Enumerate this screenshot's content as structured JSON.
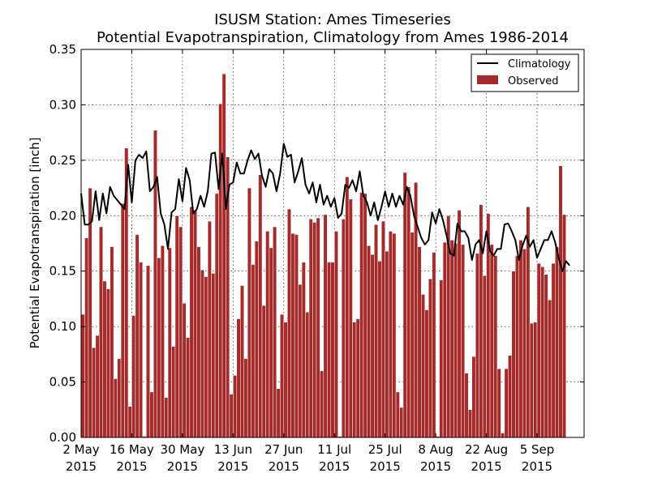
{
  "chart_data": {
    "type": "bar",
    "title": "ISUSM Station: Ames Timeseries",
    "subtitle": "Potential Evapotranspiration, Climatology from Ames 1986-2014",
    "ylabel": "Potential Evapotranspiration [inch]",
    "xlabel": "",
    "ylim": [
      0,
      0.35
    ],
    "xlim": [
      "2015-05-02",
      "2015-09-18"
    ],
    "grid": true,
    "legend": "top-right",
    "colors": {
      "observed": "#a52a2a",
      "climatology": "#000000"
    },
    "y_ticks": [
      "0.00",
      "0.05",
      "0.10",
      "0.15",
      "0.20",
      "0.25",
      "0.30",
      "0.35"
    ],
    "x_ticks": [
      {
        "date": "2015-05-02",
        "line1": "2 May",
        "line2": "2015"
      },
      {
        "date": "2015-05-16",
        "line1": "16 May",
        "line2": "2015"
      },
      {
        "date": "2015-05-30",
        "line1": "30 May",
        "line2": "2015"
      },
      {
        "date": "2015-06-13",
        "line1": "13 Jun",
        "line2": "2015"
      },
      {
        "date": "2015-06-27",
        "line1": "27 Jun",
        "line2": "2015"
      },
      {
        "date": "2015-07-11",
        "line1": "11 Jul",
        "line2": "2015"
      },
      {
        "date": "2015-07-25",
        "line1": "25 Jul",
        "line2": "2015"
      },
      {
        "date": "2015-08-08",
        "line1": "8 Aug",
        "line2": "2015"
      },
      {
        "date": "2015-08-22",
        "line1": "22 Aug",
        "line2": "2015"
      },
      {
        "date": "2015-09-05",
        "line1": "5 Sep",
        "line2": "2015"
      }
    ],
    "series": [
      {
        "name": "Observed",
        "type": "bar",
        "start_date": "2015-05-02",
        "values": [
          0.111,
          0.18,
          0.225,
          0.081,
          0.092,
          0.19,
          0.141,
          0.134,
          0.172,
          0.053,
          0.071,
          0.211,
          0.261,
          0.028,
          0.11,
          0.183,
          0.158,
          0.001,
          0.155,
          0.041,
          0.277,
          0.162,
          0.173,
          0.036,
          0.171,
          0.082,
          0.2,
          0.19,
          0.121,
          0.09,
          0.208,
          0.205,
          0.172,
          0.151,
          0.145,
          0.195,
          0.148,
          0.22,
          0.301,
          0.328,
          0.253,
          0.039,
          0.056,
          0.107,
          0.137,
          0.071,
          0.225,
          0.156,
          0.177,
          0.237,
          0.119,
          0.186,
          0.171,
          0.19,
          0.044,
          0.111,
          0.104,
          0.206,
          0.184,
          0.183,
          0.138,
          0.158,
          0.113,
          0.197,
          0.194,
          0.198,
          0.06,
          0.201,
          0.158,
          0.158,
          0.186,
          0.001,
          0.197,
          0.235,
          0.215,
          0.104,
          0.107,
          0.221,
          0.22,
          0.173,
          0.165,
          0.192,
          0.159,
          0.195,
          0.168,
          0.186,
          0.184,
          0.041,
          0.027,
          0.239,
          0.226,
          0.185,
          0.23,
          0.172,
          0.129,
          0.115,
          0.143,
          0.167,
          0.001,
          0.142,
          0.176,
          0.2,
          0.178,
          0.175,
          0.205,
          0.174,
          0.058,
          0.025,
          0.073,
          0.166,
          0.21,
          0.146,
          0.202,
          0.174,
          0.164,
          0.062,
          0.004,
          0.062,
          0.074,
          0.15,
          0.164,
          0.178,
          0.17,
          0.208,
          0.103,
          0.104,
          0.157,
          0.154,
          0.147,
          0.124,
          0.157,
          0.172,
          0.245,
          0.201
        ]
      },
      {
        "name": "Climatology",
        "type": "line",
        "start_date": "2015-05-02",
        "values": [
          0.22,
          0.192,
          0.192,
          0.195,
          0.222,
          0.196,
          0.22,
          0.202,
          0.226,
          0.218,
          0.214,
          0.21,
          0.206,
          0.246,
          0.212,
          0.25,
          0.255,
          0.252,
          0.258,
          0.222,
          0.226,
          0.235,
          0.202,
          0.192,
          0.17,
          0.203,
          0.206,
          0.233,
          0.213,
          0.243,
          0.232,
          0.202,
          0.206,
          0.218,
          0.208,
          0.222,
          0.256,
          0.257,
          0.224,
          0.256,
          0.206,
          0.228,
          0.23,
          0.248,
          0.238,
          0.238,
          0.25,
          0.259,
          0.251,
          0.256,
          0.236,
          0.226,
          0.242,
          0.238,
          0.222,
          0.238,
          0.265,
          0.253,
          0.255,
          0.23,
          0.24,
          0.252,
          0.228,
          0.22,
          0.23,
          0.212,
          0.228,
          0.21,
          0.218,
          0.208,
          0.216,
          0.198,
          0.202,
          0.228,
          0.225,
          0.232,
          0.222,
          0.24,
          0.218,
          0.212,
          0.2,
          0.212,
          0.196,
          0.208,
          0.222,
          0.208,
          0.22,
          0.208,
          0.218,
          0.21,
          0.226,
          0.218,
          0.2,
          0.19,
          0.18,
          0.174,
          0.178,
          0.203,
          0.193,
          0.206,
          0.196,
          0.182,
          0.166,
          0.164,
          0.193,
          0.186,
          0.186,
          0.18,
          0.16,
          0.174,
          0.178,
          0.166,
          0.186,
          0.168,
          0.164,
          0.17,
          0.17,
          0.192,
          0.193,
          0.186,
          0.178,
          0.16,
          0.173,
          0.182,
          0.172,
          0.178,
          0.162,
          0.17,
          0.178,
          0.178,
          0.186,
          0.176,
          0.162,
          0.15,
          0.159,
          0.155
        ]
      }
    ]
  }
}
